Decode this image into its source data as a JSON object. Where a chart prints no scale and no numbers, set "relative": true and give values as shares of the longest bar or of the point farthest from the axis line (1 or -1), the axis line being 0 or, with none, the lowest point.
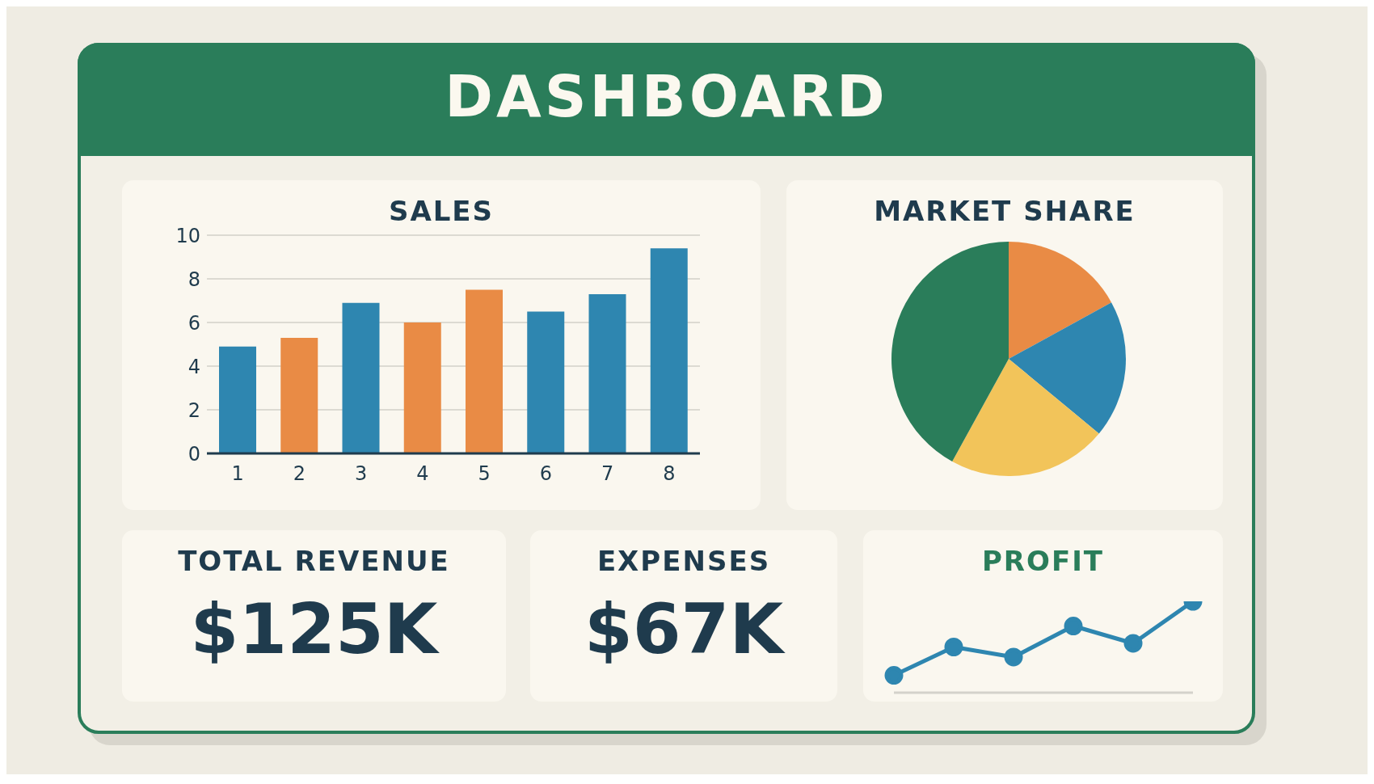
{
  "chart_data": [
    {
      "type": "other",
      "title": "DASHBOARD"
    },
    {
      "type": "bar",
      "title": "SALES",
      "categories": [
        "1",
        "2",
        "3",
        "4",
        "5",
        "6",
        "7",
        "8"
      ],
      "values": [
        4.9,
        5.3,
        6.9,
        6.0,
        7.5,
        6.5,
        7.3,
        9.4
      ],
      "colors": [
        "#2e86b0",
        "#e98b45",
        "#2e86b0",
        "#e98b45",
        "#e98b45",
        "#2e86b0",
        "#2e86b0",
        "#2e86b0"
      ],
      "ylim": [
        0,
        10
      ],
      "yticks": [
        0,
        2,
        4,
        6,
        8,
        10
      ],
      "grid": "y",
      "legend": false
    },
    {
      "type": "pie",
      "title": "MARKET SHARE",
      "categories": [
        null,
        null,
        null,
        null
      ],
      "values": [
        17,
        19,
        22,
        42
      ],
      "colors": [
        "#e98b45",
        "#2e86b0",
        "#f2c45a",
        "#2a7d5a"
      ],
      "legend": false
    },
    {
      "type": "other",
      "title": "TOTAL REVENUE",
      "annotations": [
        "$125K"
      ]
    },
    {
      "type": "other",
      "title": "EXPENSES",
      "annotations": [
        "$67K"
      ]
    },
    {
      "type": "line",
      "title": "PROFIT",
      "relative": true,
      "categories": [
        null,
        null,
        null,
        null,
        null,
        null
      ],
      "series": [
        {
          "color": "#2e86b0",
          "values": [
            0.19,
            0.5,
            0.39,
            0.73,
            0.54,
            1
          ]
        }
      ],
      "marker": "circle",
      "grid": false,
      "legend": false
    }
  ]
}
